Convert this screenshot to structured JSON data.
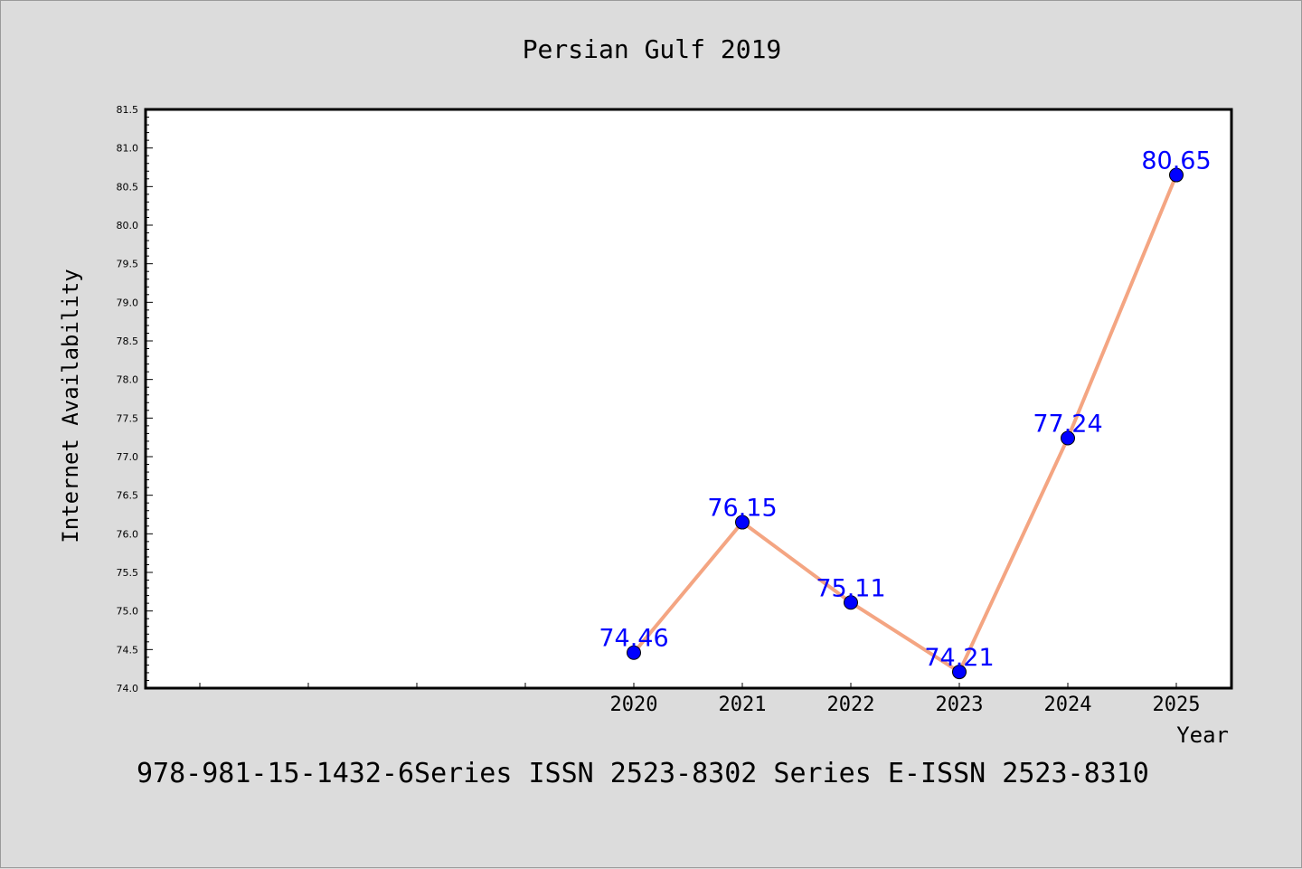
{
  "chart_data": {
    "type": "line",
    "title": "Persian Gulf 2019",
    "xlabel": "Year",
    "ylabel": "Internet Availability",
    "x": [
      "2020",
      "2021",
      "2022",
      "2023",
      "2024",
      "2025"
    ],
    "series": [
      {
        "values": [
          74.46,
          76.15,
          75.11,
          74.21,
          77.24,
          80.65
        ],
        "data_labels": [
          "74.46",
          "76.15",
          "75.11",
          "74.21",
          "77.24",
          "80.65"
        ]
      }
    ],
    "ylim": [
      74.0,
      81.5
    ],
    "y_ticks": [
      "74.0",
      "74.5",
      "75.0",
      "75.5",
      "76.0",
      "76.5",
      "77.0",
      "77.5",
      "78.0",
      "78.5",
      "79.0",
      "79.5",
      "80.0",
      "80.5",
      "81.0",
      "81.5"
    ],
    "grid": false,
    "legend": "none",
    "line_color": "#f4a582",
    "marker_color": "#0000ff",
    "label_color": "#0000ff"
  },
  "footer": "978-981-15-1432-6Series ISSN 2523-8302 Series E-ISSN 2523-8310"
}
